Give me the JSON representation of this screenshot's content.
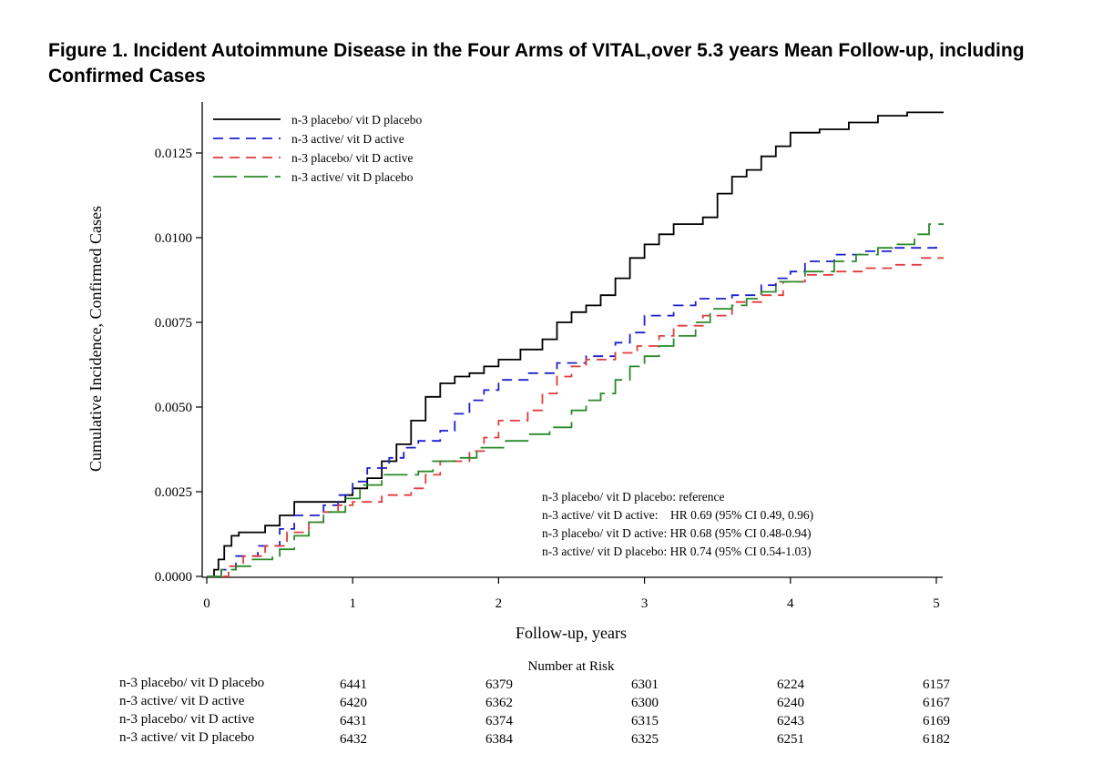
{
  "title": "Figure 1. Incident Autoimmune Disease in the Four Arms of VITAL,over 5.3 years Mean Follow-up, including Confirmed Cases",
  "chart_data": {
    "type": "line",
    "xlabel": "Follow-up, years",
    "ylabel": "Cumulative Incidence, Confirmed Cases",
    "xlim": [
      0,
      5
    ],
    "ylim": [
      0,
      0.0138
    ],
    "xticks": [
      "0",
      "1",
      "2",
      "3",
      "4",
      "5"
    ],
    "yticks": [
      "0.0000",
      "0.0025",
      "0.0050",
      "0.0075",
      "0.0100",
      "0.0125"
    ],
    "legend_position": "top-left",
    "series": [
      {
        "name": "n-3 placebo/ vit D placebo",
        "color": "#000000",
        "dash": "solid",
        "points": [
          [
            0,
            0
          ],
          [
            0.05,
            0.0002
          ],
          [
            0.08,
            0.0005
          ],
          [
            0.12,
            0.0009
          ],
          [
            0.17,
            0.0012
          ],
          [
            0.22,
            0.0013
          ],
          [
            0.4,
            0.0015
          ],
          [
            0.5,
            0.0018
          ],
          [
            0.6,
            0.0022
          ],
          [
            0.8,
            0.0022
          ],
          [
            0.95,
            0.0024
          ],
          [
            1.0,
            0.0026
          ],
          [
            1.1,
            0.0029
          ],
          [
            1.2,
            0.0034
          ],
          [
            1.3,
            0.0039
          ],
          [
            1.4,
            0.0046
          ],
          [
            1.5,
            0.0053
          ],
          [
            1.6,
            0.0057
          ],
          [
            1.7,
            0.0059
          ],
          [
            1.8,
            0.006
          ],
          [
            1.9,
            0.0062
          ],
          [
            2.0,
            0.0064
          ],
          [
            2.15,
            0.0067
          ],
          [
            2.3,
            0.007
          ],
          [
            2.4,
            0.0075
          ],
          [
            2.5,
            0.0078
          ],
          [
            2.6,
            0.008
          ],
          [
            2.7,
            0.0083
          ],
          [
            2.8,
            0.0088
          ],
          [
            2.9,
            0.0094
          ],
          [
            3.0,
            0.0098
          ],
          [
            3.1,
            0.0101
          ],
          [
            3.2,
            0.0104
          ],
          [
            3.4,
            0.0106
          ],
          [
            3.5,
            0.0113
          ],
          [
            3.6,
            0.0118
          ],
          [
            3.7,
            0.012
          ],
          [
            3.8,
            0.0124
          ],
          [
            3.9,
            0.0127
          ],
          [
            4.0,
            0.0131
          ],
          [
            4.2,
            0.0132
          ],
          [
            4.4,
            0.0134
          ],
          [
            4.6,
            0.0136
          ],
          [
            4.8,
            0.0137
          ],
          [
            5.05,
            0.0137
          ]
        ]
      },
      {
        "name": "n-3 active/ vit D active",
        "color": "#1f1fcc",
        "dash": "dashed",
        "points": [
          [
            0,
            0
          ],
          [
            0.1,
            0.0002
          ],
          [
            0.2,
            0.0006
          ],
          [
            0.35,
            0.0009
          ],
          [
            0.5,
            0.0014
          ],
          [
            0.6,
            0.0018
          ],
          [
            0.8,
            0.0021
          ],
          [
            0.9,
            0.0024
          ],
          [
            1.0,
            0.0028
          ],
          [
            1.1,
            0.0032
          ],
          [
            1.25,
            0.0035
          ],
          [
            1.35,
            0.0038
          ],
          [
            1.45,
            0.004
          ],
          [
            1.6,
            0.0043
          ],
          [
            1.7,
            0.0048
          ],
          [
            1.8,
            0.0052
          ],
          [
            1.9,
            0.0055
          ],
          [
            2.0,
            0.0058
          ],
          [
            2.2,
            0.006
          ],
          [
            2.4,
            0.0063
          ],
          [
            2.6,
            0.0065
          ],
          [
            2.8,
            0.0069
          ],
          [
            2.9,
            0.0072
          ],
          [
            3.0,
            0.0077
          ],
          [
            3.2,
            0.008
          ],
          [
            3.35,
            0.0082
          ],
          [
            3.6,
            0.0083
          ],
          [
            3.8,
            0.0086
          ],
          [
            3.9,
            0.0088
          ],
          [
            4.0,
            0.009
          ],
          [
            4.1,
            0.0093
          ],
          [
            4.3,
            0.0095
          ],
          [
            4.5,
            0.0096
          ],
          [
            4.7,
            0.0097
          ],
          [
            4.9,
            0.0097
          ],
          [
            5.0,
            0.0099
          ]
        ]
      },
      {
        "name": "n-3 placebo/ vit D active",
        "color": "#e03c3c",
        "dash": "dashed",
        "points": [
          [
            0,
            0
          ],
          [
            0.15,
            0.0003
          ],
          [
            0.25,
            0.0006
          ],
          [
            0.4,
            0.0009
          ],
          [
            0.55,
            0.0013
          ],
          [
            0.7,
            0.0016
          ],
          [
            0.8,
            0.0019
          ],
          [
            0.9,
            0.0021
          ],
          [
            1.0,
            0.0022
          ],
          [
            1.2,
            0.0024
          ],
          [
            1.4,
            0.0026
          ],
          [
            1.5,
            0.003
          ],
          [
            1.6,
            0.0034
          ],
          [
            1.8,
            0.0037
          ],
          [
            1.9,
            0.0041
          ],
          [
            2.0,
            0.0046
          ],
          [
            2.2,
            0.0049
          ],
          [
            2.3,
            0.0054
          ],
          [
            2.4,
            0.0059
          ],
          [
            2.5,
            0.0062
          ],
          [
            2.6,
            0.0064
          ],
          [
            2.8,
            0.0066
          ],
          [
            2.95,
            0.0068
          ],
          [
            3.1,
            0.0071
          ],
          [
            3.2,
            0.0074
          ],
          [
            3.4,
            0.0077
          ],
          [
            3.6,
            0.0081
          ],
          [
            3.8,
            0.0083
          ],
          [
            3.95,
            0.0087
          ],
          [
            4.1,
            0.0089
          ],
          [
            4.3,
            0.009
          ],
          [
            4.5,
            0.0091
          ],
          [
            4.7,
            0.0092
          ],
          [
            4.9,
            0.0094
          ],
          [
            5.05,
            0.0094
          ]
        ]
      },
      {
        "name": "n-3 active/ vit D placebo",
        "color": "#2a8a2a",
        "dash": "long-dash",
        "points": [
          [
            0,
            0
          ],
          [
            0.1,
            0.0002
          ],
          [
            0.2,
            0.0003
          ],
          [
            0.3,
            0.0005
          ],
          [
            0.45,
            0.0006
          ],
          [
            0.5,
            0.0008
          ],
          [
            0.6,
            0.0012
          ],
          [
            0.7,
            0.0016
          ],
          [
            0.8,
            0.0019
          ],
          [
            0.95,
            0.0023
          ],
          [
            1.05,
            0.0027
          ],
          [
            1.2,
            0.003
          ],
          [
            1.45,
            0.0031
          ],
          [
            1.55,
            0.0034
          ],
          [
            1.7,
            0.0035
          ],
          [
            1.85,
            0.0038
          ],
          [
            2.05,
            0.004
          ],
          [
            2.2,
            0.0042
          ],
          [
            2.35,
            0.0044
          ],
          [
            2.5,
            0.0049
          ],
          [
            2.6,
            0.0052
          ],
          [
            2.7,
            0.0054
          ],
          [
            2.8,
            0.0058
          ],
          [
            2.9,
            0.0062
          ],
          [
            3.0,
            0.0065
          ],
          [
            3.1,
            0.0068
          ],
          [
            3.2,
            0.0071
          ],
          [
            3.35,
            0.0075
          ],
          [
            3.45,
            0.0079
          ],
          [
            3.6,
            0.008
          ],
          [
            3.7,
            0.0082
          ],
          [
            3.8,
            0.0084
          ],
          [
            3.9,
            0.0087
          ],
          [
            4.1,
            0.009
          ],
          [
            4.3,
            0.0093
          ],
          [
            4.45,
            0.0095
          ],
          [
            4.6,
            0.0097
          ],
          [
            4.7,
            0.0098
          ],
          [
            4.85,
            0.0101
          ],
          [
            4.95,
            0.0104
          ],
          [
            5.05,
            0.0104
          ]
        ]
      }
    ],
    "annotations": [
      "n-3 placebo/ vit D placebo: reference",
      "n-3 active/ vit D active:    HR 0.69 (95% CI 0.49, 0.96)",
      "n-3 placebo/ vit D active: HR 0.68 (95% CI 0.48-0.94)",
      "n-3 active/ vit D placebo: HR 0.74 (95% CI 0.54-1.03)"
    ],
    "risk_table": {
      "title": "Number at Risk",
      "rows": [
        {
          "label": "n-3 placebo/ vit D placebo",
          "values": [
            "6441",
            "6379",
            "6301",
            "6224",
            "6157"
          ]
        },
        {
          "label": "n-3 active/ vit D active",
          "values": [
            "6420",
            "6362",
            "6300",
            "6240",
            "6167"
          ]
        },
        {
          "label": "n-3 placebo/ vit D active",
          "values": [
            "6431",
            "6374",
            "6315",
            "6243",
            "6169"
          ]
        },
        {
          "label": "n-3 active/ vit D placebo",
          "values": [
            "6432",
            "6384",
            "6325",
            "6251",
            "6182"
          ]
        }
      ]
    }
  }
}
